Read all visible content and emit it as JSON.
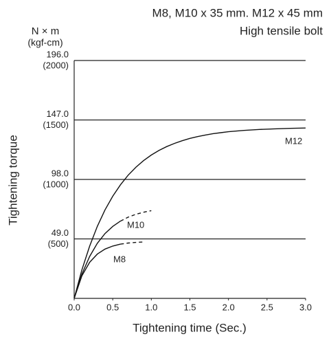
{
  "chart_data": {
    "type": "line",
    "title": "M8, M10 x 35 mm. M12 x 45 mm",
    "subtitle": "High tensile bolt",
    "y_unit": "N × m",
    "y_unit_alt": "(kgf-cm)",
    "x_label": "Tightening time (Sec.)",
    "y_label": "Tightening torque",
    "x": [
      0,
      0.1,
      0.2,
      0.3,
      0.4,
      0.5,
      0.6,
      0.7,
      0.8,
      0.9,
      1.0,
      1.1,
      1.2,
      1.3,
      1.4,
      1.5,
      1.6,
      1.7,
      1.8,
      1.9,
      2.0,
      2.2,
      2.4,
      2.6,
      2.8,
      3.0
    ],
    "series": [
      {
        "name": "M12",
        "color": "#111111",
        "values": [
          0,
          23.4,
          43.0,
          59.3,
          72.9,
          84.2,
          93.6,
          101.5,
          108.1,
          113.5,
          118.1,
          121.9,
          125.1,
          127.7,
          129.9,
          131.8,
          133.3,
          134.6,
          135.7,
          136.5,
          137.3,
          138.4,
          139.2,
          139.7,
          140.1,
          140.4
        ],
        "dashed_values": [
          null,
          null,
          null,
          null,
          null,
          null,
          null,
          null,
          null,
          null,
          null,
          null,
          null,
          null,
          null,
          null,
          null,
          null,
          null,
          null,
          null,
          null,
          null,
          null,
          null,
          null
        ]
      },
      {
        "name": "M10",
        "color": "#111111",
        "values": [
          0,
          19.9,
          34.5,
          45.4,
          53.4,
          59.3,
          63.7,
          null,
          null,
          null,
          null,
          null,
          null,
          null,
          null,
          null,
          null,
          null,
          null,
          null,
          null,
          null,
          null,
          null,
          null,
          null
        ],
        "dashed_values": [
          null,
          null,
          null,
          null,
          null,
          null,
          63.7,
          66.9,
          69.3,
          71.0,
          72.3,
          null,
          null,
          null,
          null,
          null,
          null,
          null,
          null,
          null,
          null,
          null,
          null,
          null,
          null,
          null
        ]
      },
      {
        "name": "M8",
        "color": "#111111",
        "values": [
          0,
          18.5,
          29.7,
          36.5,
          40.6,
          43.1,
          44.7,
          null,
          null,
          null,
          null,
          null,
          null,
          null,
          null,
          null,
          null,
          null,
          null,
          null,
          null,
          null,
          null,
          null,
          null,
          null
        ],
        "dashed_values": [
          null,
          null,
          null,
          null,
          null,
          null,
          44.7,
          45.6,
          46.1,
          46.5,
          null,
          null,
          null,
          null,
          null,
          null,
          null,
          null,
          null,
          null,
          null,
          null,
          null,
          null,
          null,
          null
        ]
      }
    ],
    "xlim": [
      0,
      3.0
    ],
    "ylim": [
      0,
      196
    ],
    "xticks": [
      {
        "value": 0,
        "label": "0.0"
      },
      0.5,
      {
        "value": 1,
        "label": "1.0"
      },
      1.5,
      {
        "value": 2,
        "label": "2.0"
      },
      2.5,
      {
        "value": 3,
        "label": "3.0"
      }
    ],
    "yticks": [
      {
        "value": 49,
        "label": "49.0"
      },
      {
        "value": 98,
        "label": "98.0"
      },
      {
        "value": 147,
        "label": "147.0"
      },
      {
        "value": 196,
        "label": "196.0"
      }
    ],
    "yticks_alt": [
      {
        "value": 49,
        "label": "(500)"
      },
      {
        "value": 98,
        "label": "(1000)"
      },
      {
        "value": 147,
        "label": "(1500)"
      },
      {
        "value": 196,
        "label": "(2000)"
      }
    ],
    "grid": true
  }
}
